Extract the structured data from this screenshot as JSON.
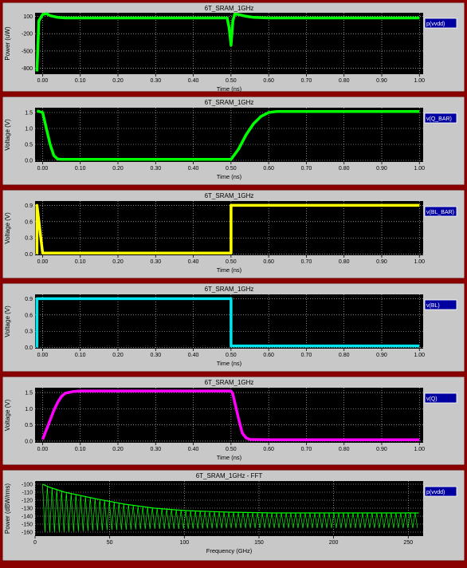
{
  "background_color": "#8b0000",
  "panel_color": "#c8c8c8",
  "plot_bg_color": "#000000",
  "legend_bg_color": "#0000a0",
  "chart_data": [
    {
      "type": "line",
      "title": "6T_SRAM_1GHz",
      "xlabel": "Time (ns)",
      "ylabel": "Power (uW)",
      "xlim": [
        -0.02,
        1.01
      ],
      "ylim": [
        -900,
        160
      ],
      "xticks": [
        "0.00",
        "0.10",
        "0.20",
        "0.30",
        "0.40",
        "0.50",
        "0.60",
        "0.70",
        "0.80",
        "0.90",
        "1.00"
      ],
      "yticks": [
        {
          "v": 100,
          "label": "100"
        },
        {
          "v": -200,
          "label": "-200"
        },
        {
          "v": -500,
          "label": "-500"
        },
        {
          "v": -800,
          "label": "-800"
        }
      ],
      "series": [
        {
          "name": "p(vvdd)",
          "color": "#00ff00",
          "x": [
            -0.015,
            -0.01,
            0.0,
            0.01,
            0.02,
            0.04,
            0.06,
            0.1,
            0.2,
            0.3,
            0.4,
            0.49,
            0.495,
            0.5,
            0.505,
            0.51,
            0.52,
            0.54,
            0.56,
            0.6,
            0.7,
            0.8,
            0.9,
            1.0
          ],
          "y": [
            -850,
            20,
            130,
            145,
            110,
            80,
            70,
            70,
            70,
            70,
            70,
            70,
            -100,
            -400,
            20,
            140,
            130,
            100,
            80,
            70,
            70,
            70,
            70,
            70
          ]
        }
      ]
    },
    {
      "type": "line",
      "title": "6T_SRAM_1GHz",
      "xlabel": "Time (ns)",
      "ylabel": "Voltage (V)",
      "xlim": [
        -0.02,
        1.01
      ],
      "ylim": [
        -0.05,
        1.65
      ],
      "xticks": [
        "0.00",
        "0.10",
        "0.20",
        "0.30",
        "0.40",
        "0.50",
        "0.60",
        "0.70",
        "0.80",
        "0.90",
        "1.00"
      ],
      "yticks": [
        {
          "v": 1.5,
          "label": "1.5"
        },
        {
          "v": 1.0,
          "label": "1.0"
        },
        {
          "v": 0.5,
          "label": "0.5"
        },
        {
          "v": 0.0,
          "label": "0.0"
        }
      ],
      "series": [
        {
          "name": "v(Q_BAR)",
          "color": "#00ff00",
          "x": [
            -0.015,
            0.0,
            0.01,
            0.02,
            0.03,
            0.04,
            0.05,
            0.1,
            0.2,
            0.3,
            0.4,
            0.5,
            0.52,
            0.54,
            0.56,
            0.58,
            0.6,
            0.62,
            0.7,
            0.8,
            0.9,
            1.0
          ],
          "y": [
            1.55,
            1.5,
            1.0,
            0.5,
            0.15,
            0.04,
            0.03,
            0.03,
            0.03,
            0.03,
            0.03,
            0.03,
            0.35,
            0.8,
            1.15,
            1.38,
            1.5,
            1.53,
            1.53,
            1.53,
            1.53,
            1.53
          ]
        }
      ]
    },
    {
      "type": "line",
      "title": "6T_SRAM_1GHz",
      "xlabel": "Time (ns)",
      "ylabel": "Voltage (V)",
      "xlim": [
        -0.02,
        1.01
      ],
      "ylim": [
        -0.02,
        0.98
      ],
      "xticks": [
        "0.00",
        "0.10",
        "0.20",
        "0.30",
        "0.40",
        "0.50",
        "0.60",
        "0.70",
        "0.80",
        "0.90",
        "1.00"
      ],
      "yticks": [
        {
          "v": 0.9,
          "label": "0.9"
        },
        {
          "v": 0.6,
          "label": "0.6"
        },
        {
          "v": 0.3,
          "label": "0.3"
        },
        {
          "v": 0.0,
          "label": "0.0"
        }
      ],
      "series": [
        {
          "name": "v(BL_BAR)",
          "color": "#ffff00",
          "x": [
            -0.015,
            -0.015,
            0.0,
            0.1,
            0.2,
            0.3,
            0.4,
            0.5,
            0.5,
            0.6,
            0.7,
            0.8,
            0.9,
            1.0
          ],
          "y": [
            0.0,
            0.9,
            0.02,
            0.02,
            0.02,
            0.02,
            0.02,
            0.02,
            0.9,
            0.9,
            0.9,
            0.9,
            0.9,
            0.9
          ]
        }
      ]
    },
    {
      "type": "line",
      "title": "6T_SRAM_1GHz",
      "xlabel": "Time (ns)",
      "ylabel": "Voltage (V)",
      "xlim": [
        -0.02,
        1.01
      ],
      "ylim": [
        -0.02,
        0.98
      ],
      "xticks": [
        "0.00",
        "0.10",
        "0.20",
        "0.30",
        "0.40",
        "0.50",
        "0.60",
        "0.70",
        "0.80",
        "0.90",
        "1.00"
      ],
      "yticks": [
        {
          "v": 0.9,
          "label": "0.9"
        },
        {
          "v": 0.6,
          "label": "0.6"
        },
        {
          "v": 0.3,
          "label": "0.3"
        },
        {
          "v": 0.0,
          "label": "0.0"
        }
      ],
      "series": [
        {
          "name": "v(BL)",
          "color": "#00e5ee",
          "x": [
            -0.015,
            -0.015,
            0.0,
            0.1,
            0.2,
            0.3,
            0.4,
            0.5,
            0.5,
            0.6,
            0.7,
            0.8,
            0.9,
            1.0
          ],
          "y": [
            0.0,
            0.9,
            0.9,
            0.9,
            0.9,
            0.9,
            0.9,
            0.9,
            0.03,
            0.03,
            0.03,
            0.03,
            0.03,
            0.03
          ]
        }
      ]
    },
    {
      "type": "line",
      "title": "6T_SRAM_1GHz",
      "xlabel": "Time (ns)",
      "ylabel": "Voltage (V)",
      "xlim": [
        -0.02,
        1.01
      ],
      "ylim": [
        -0.05,
        1.65
      ],
      "xticks": [
        "0.00",
        "0.10",
        "0.20",
        "0.30",
        "0.40",
        "0.50",
        "0.60",
        "0.70",
        "0.80",
        "0.90",
        "1.00"
      ],
      "yticks": [
        {
          "v": 1.5,
          "label": "1.5"
        },
        {
          "v": 1.0,
          "label": "1.0"
        },
        {
          "v": 0.5,
          "label": "0.5"
        },
        {
          "v": 0.0,
          "label": "0.0"
        }
      ],
      "series": [
        {
          "name": "v(Q)",
          "color": "#ff00ff",
          "x": [
            0.0,
            0.01,
            0.02,
            0.03,
            0.04,
            0.05,
            0.06,
            0.08,
            0.1,
            0.2,
            0.3,
            0.4,
            0.5,
            0.505,
            0.51,
            0.52,
            0.53,
            0.54,
            0.55,
            0.6,
            0.7,
            0.8,
            0.9,
            1.0
          ],
          "y": [
            0.05,
            0.35,
            0.65,
            0.95,
            1.2,
            1.38,
            1.48,
            1.53,
            1.55,
            1.55,
            1.55,
            1.55,
            1.55,
            1.45,
            1.2,
            0.7,
            0.25,
            0.1,
            0.05,
            0.04,
            0.04,
            0.04,
            0.04,
            0.04
          ]
        }
      ]
    },
    {
      "type": "line",
      "title": "6T_SRAM_1GHz - FFT",
      "xlabel": "Frequency (GHz)",
      "ylabel": "Power (dBW/rms)",
      "xlim": [
        0,
        260
      ],
      "ylim": [
        -165,
        -96
      ],
      "xticks_num": [
        0,
        50,
        100,
        150,
        200,
        250
      ],
      "yticks": [
        {
          "v": -100,
          "label": "-100"
        },
        {
          "v": -110,
          "label": "-110"
        },
        {
          "v": -120,
          "label": "-120"
        },
        {
          "v": -130,
          "label": "-130"
        },
        {
          "v": -140,
          "label": "-140"
        },
        {
          "v": -150,
          "label": "-150"
        },
        {
          "v": -160,
          "label": "-160"
        }
      ],
      "series": [
        {
          "name": "p(vvdd)",
          "color": "#00ff00",
          "envelope_top": [
            -100,
            -104,
            -110,
            -118,
            -125,
            -130,
            -133,
            -135,
            -136,
            -136,
            -136,
            -136,
            -136
          ],
          "envelope_bottom": [
            -160,
            -160,
            -160,
            -158,
            -157,
            -156,
            -156,
            -155,
            -155,
            -155,
            -155,
            -155,
            -155
          ],
          "envelope_x": [
            5,
            10,
            20,
            40,
            60,
            80,
            100,
            130,
            160,
            190,
            220,
            240,
            257
          ]
        }
      ]
    }
  ]
}
